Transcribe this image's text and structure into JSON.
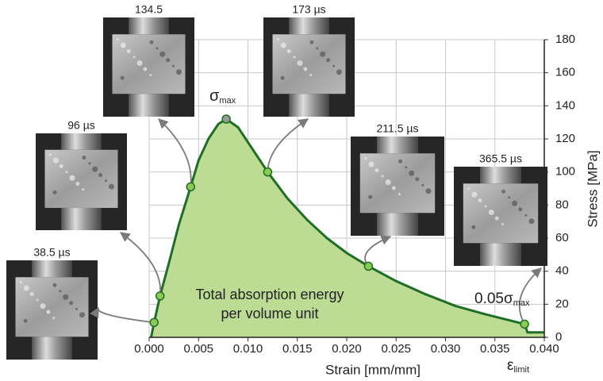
{
  "chart_data": {
    "type": "line",
    "xlabel": "Strain [mm/mm]",
    "ylabel": "Stress [MPa]",
    "x": [
      0.0002,
      0.0003,
      0.0005,
      0.0011,
      0.002,
      0.003,
      0.0042,
      0.005,
      0.006,
      0.007,
      0.0078,
      0.009,
      0.01,
      0.011,
      0.012,
      0.014,
      0.016,
      0.018,
      0.02,
      0.0222,
      0.025,
      0.028,
      0.031,
      0.034,
      0.036,
      0.038,
      0.0383,
      0.04
    ],
    "values": [
      0,
      3,
      9,
      25,
      45,
      68,
      91,
      107,
      120,
      129,
      132,
      127,
      118,
      109,
      100,
      84,
      71,
      60,
      51,
      43,
      34,
      26,
      19,
      14,
      11,
      8,
      3,
      3
    ],
    "color": "#1f6e25",
    "fill": "#bcdc93",
    "markers": {
      "x": [
        0.0005,
        0.0011,
        0.0042,
        0.0078,
        0.012,
        0.0222,
        0.038
      ],
      "values": [
        9,
        25,
        91,
        132,
        100,
        43,
        8
      ],
      "colors": [
        "#8ccb52",
        "#8ccb52",
        "#8ccb52",
        "#9a9a9a",
        "#8ccb52",
        "#8ccb52",
        "#8ccb52"
      ]
    },
    "xlim": [
      0,
      0.04
    ],
    "xticks": [
      {
        "value": 0,
        "label": "0.000"
      },
      {
        "value": 0.005,
        "label": "0.005"
      },
      {
        "value": 0.01,
        "label": "0.010"
      },
      {
        "value": 0.015,
        "label": "0.015"
      },
      {
        "value": 0.02,
        "label": "0.020"
      },
      {
        "value": 0.025,
        "label": "0.025"
      },
      {
        "value": 0.03,
        "label": "0.030"
      },
      {
        "value": 0.035,
        "label": "0.035"
      },
      {
        "value": 0.04,
        "label": "0.040"
      }
    ],
    "ylim": [
      0,
      180
    ],
    "yticks": [
      0,
      20,
      40,
      60,
      80,
      100,
      120,
      140,
      160,
      180
    ],
    "grid": true,
    "area_label": [
      "Total absorption energy",
      "per volume unit"
    ],
    "annotations": [
      {
        "text": "σ",
        "sub": "max"
      },
      {
        "text": "0.05σ",
        "sub": "max"
      },
      {
        "text": "ε",
        "sub": "limit"
      }
    ],
    "photos": [
      {
        "label": "38.5 µs"
      },
      {
        "label": "96 µs"
      },
      {
        "label": "134.5"
      },
      {
        "label": "173 µs"
      },
      {
        "label": "211.5 µs"
      },
      {
        "label": "365.5 µs"
      }
    ]
  }
}
